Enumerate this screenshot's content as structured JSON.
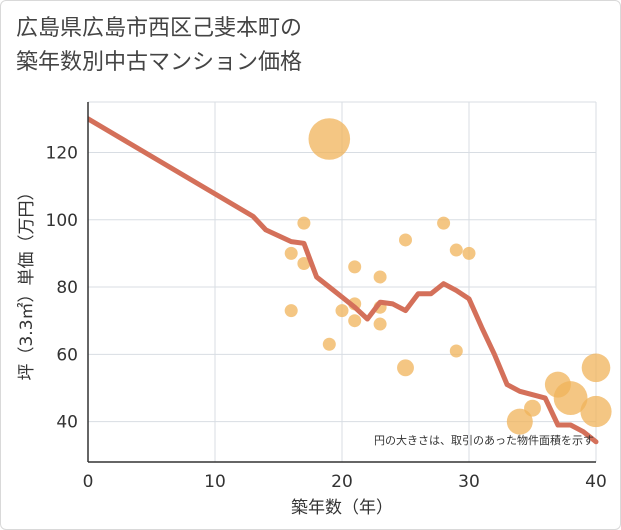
{
  "title": {
    "line1": "広島県広島市西区己斐本町の",
    "line2": "築年数別中古マンション価格"
  },
  "colors": {
    "bubble": "#f0b35a",
    "line": "#d4705a",
    "grid": "#d8dde3",
    "axis": "#333333"
  },
  "chart_data": {
    "type": "scatter",
    "xlabel": "築年数（年）",
    "ylabel": "坪（3.3㎡）単価（万円）",
    "xlim": [
      0,
      40
    ],
    "ylim": [
      28,
      135
    ],
    "xticks": [
      0,
      10,
      20,
      30,
      40
    ],
    "yticks": [
      40,
      60,
      80,
      100,
      120
    ],
    "xtick_labels": [
      "0",
      "10",
      "20",
      "30",
      "40"
    ],
    "ytick_labels": [
      "40",
      "60",
      "80",
      "100",
      "120"
    ],
    "grid": true,
    "annotation": "円の大きさは、取引のあった物件面積を示す",
    "bubbles": [
      {
        "x": 19,
        "y": 124,
        "size": 3.2
      },
      {
        "x": 16,
        "y": 90,
        "size": 1
      },
      {
        "x": 17,
        "y": 99,
        "size": 1
      },
      {
        "x": 17,
        "y": 87,
        "size": 1
      },
      {
        "x": 16,
        "y": 73,
        "size": 1
      },
      {
        "x": 19,
        "y": 63,
        "size": 1
      },
      {
        "x": 20,
        "y": 73,
        "size": 1
      },
      {
        "x": 21,
        "y": 86,
        "size": 1
      },
      {
        "x": 21,
        "y": 75,
        "size": 1
      },
      {
        "x": 21,
        "y": 70,
        "size": 1
      },
      {
        "x": 23,
        "y": 83,
        "size": 1
      },
      {
        "x": 23,
        "y": 74,
        "size": 1
      },
      {
        "x": 23,
        "y": 69,
        "size": 1
      },
      {
        "x": 25,
        "y": 94,
        "size": 1
      },
      {
        "x": 25,
        "y": 56,
        "size": 1.3
      },
      {
        "x": 28,
        "y": 99,
        "size": 1
      },
      {
        "x": 29,
        "y": 91,
        "size": 1
      },
      {
        "x": 30,
        "y": 90,
        "size": 1
      },
      {
        "x": 29,
        "y": 61,
        "size": 1
      },
      {
        "x": 34,
        "y": 40,
        "size": 2
      },
      {
        "x": 35,
        "y": 44,
        "size": 1.3
      },
      {
        "x": 37,
        "y": 51,
        "size": 2
      },
      {
        "x": 38,
        "y": 47,
        "size": 2.6
      },
      {
        "x": 40,
        "y": 56,
        "size": 2.2
      },
      {
        "x": 40,
        "y": 43,
        "size": 2.4
      }
    ],
    "trend_line": {
      "x": [
        0,
        13,
        14,
        16,
        17,
        18,
        19,
        20,
        21,
        22,
        23,
        24,
        25,
        26,
        27,
        28,
        29,
        30,
        31,
        32,
        33,
        34,
        35,
        36,
        37,
        38,
        39,
        40
      ],
      "y": [
        130,
        101,
        97,
        93.5,
        93,
        83,
        80,
        77,
        74,
        70.5,
        75.5,
        75,
        73,
        78,
        78,
        81,
        79,
        76.5,
        68,
        60,
        51,
        49,
        48,
        47,
        39,
        39,
        37,
        34
      ]
    }
  }
}
